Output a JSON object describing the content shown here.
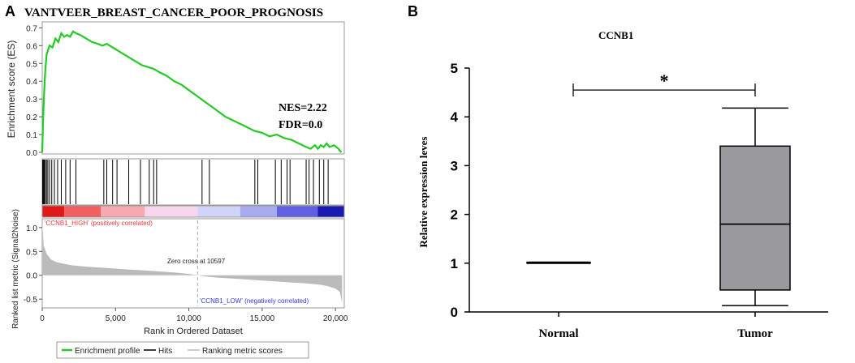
{
  "chart_data": [
    {
      "panel_letter": "A",
      "type": "line",
      "title": "VANTVEER_BREAST_CANCER_POOR_PROGNOSIS",
      "enrichment": {
        "ylabel": "Enrichment score (ES)",
        "ylim": [
          0,
          0.72
        ],
        "yticks": [
          "0.0",
          "0.1",
          "0.2",
          "0.3",
          "0.4",
          "0.5",
          "0.6",
          "0.7"
        ],
        "ytick_values": [
          0,
          0.1,
          0.2,
          0.3,
          0.4,
          0.5,
          0.6,
          0.7
        ],
        "xlim": [
          0,
          20600
        ],
        "series": [
          {
            "name": "Enrichment profile",
            "color": "#22cc22",
            "x": [
              0,
              60,
              120,
              200,
              300,
              500,
              700,
              900,
              1100,
              1300,
              1500,
              1700,
              1900,
              2100,
              2300,
              2600,
              3000,
              3400,
              3800,
              4100,
              4400,
              4600,
              4800,
              5200,
              5600,
              6000,
              6400,
              6800,
              7200,
              7600,
              8000,
              8500,
              9000,
              9500,
              10000,
              10500,
              11000,
              11500,
              12000,
              12500,
              13000,
              13500,
              14000,
              14500,
              15000,
              15500,
              16000,
              16500,
              17000,
              17500,
              18000,
              18300,
              18600,
              18800,
              19000,
              19200,
              19400,
              19600,
              19900,
              20200,
              20400
            ],
            "values": [
              0.0,
              0.18,
              0.32,
              0.45,
              0.55,
              0.6,
              0.59,
              0.64,
              0.62,
              0.67,
              0.65,
              0.66,
              0.65,
              0.68,
              0.67,
              0.66,
              0.64,
              0.62,
              0.61,
              0.6,
              0.61,
              0.6,
              0.59,
              0.57,
              0.55,
              0.53,
              0.51,
              0.49,
              0.48,
              0.47,
              0.45,
              0.43,
              0.4,
              0.38,
              0.35,
              0.32,
              0.29,
              0.26,
              0.23,
              0.2,
              0.18,
              0.16,
              0.14,
              0.12,
              0.11,
              0.09,
              0.1,
              0.08,
              0.07,
              0.05,
              0.03,
              0.02,
              0.04,
              0.02,
              0.04,
              0.03,
              0.05,
              0.03,
              0.04,
              0.02,
              0.0
            ]
          }
        ],
        "annotations": [
          "NES=2.22",
          "FDR=0.0"
        ]
      },
      "hits": {
        "series_name": "Hits",
        "color": "#000000",
        "positions": [
          30,
          80,
          140,
          210,
          290,
          380,
          500,
          650,
          830,
          1050,
          1300,
          1600,
          1900,
          2300,
          4200,
          4400,
          4800,
          5100,
          5900,
          6700,
          7300,
          7600,
          7800,
          10900,
          11400,
          14500,
          14700,
          15900,
          16300,
          16700,
          16900,
          18000,
          18200,
          18500,
          18900,
          19200,
          19500
        ]
      },
      "ranked_metric": {
        "ylabel": "Ranked list metric (Signal2Noise)",
        "xlabel": "Rank in Ordered Dataset",
        "ylim": [
          -0.65,
          1.15
        ],
        "yticks": [
          "1.0",
          "0.5",
          "0.0",
          "-0.5"
        ],
        "ytick_values": [
          1.0,
          0.5,
          0.0,
          -0.5
        ],
        "xlim": [
          0,
          20600
        ],
        "xticks": [
          "0",
          "5,000",
          "10,000",
          "15,000",
          "20,000"
        ],
        "xtick_values": [
          0,
          5000,
          10000,
          15000,
          20000
        ],
        "series": [
          {
            "name": "Ranking metric scores",
            "color": "#bbbbbb",
            "x": [
              0,
              100,
              300,
              600,
              1000,
              1500,
              2000,
              3000,
              4000,
              5000,
              6000,
              7000,
              8000,
              9000,
              10000,
              10597,
              11000,
              12000,
              13000,
              14000,
              15000,
              16000,
              17000,
              18000,
              19000,
              19500,
              20000,
              20300,
              20450
            ],
            "values": [
              1.1,
              0.62,
              0.45,
              0.33,
              0.27,
              0.24,
              0.21,
              0.18,
              0.16,
              0.14,
              0.12,
              0.1,
              0.08,
              0.06,
              0.03,
              0.0,
              -0.02,
              -0.05,
              -0.07,
              -0.09,
              -0.11,
              -0.13,
              -0.15,
              -0.17,
              -0.2,
              -0.23,
              -0.28,
              -0.35,
              -0.58
            ]
          }
        ],
        "zero_cross_label": "Zero cross at 10597",
        "zero_cross_value": 10597,
        "high_label": "'CCNB1_HIGH' (positively correlated)",
        "low_label": "'CCNB1_LOW' (negatively correlated)",
        "high_color": "#e8383a",
        "low_color": "#3838d8"
      },
      "heat_bar": {
        "segments": [
          {
            "end": 1500,
            "color": "#e01818"
          },
          {
            "end": 4000,
            "color": "#f06060"
          },
          {
            "end": 7000,
            "color": "#f8a8b0"
          },
          {
            "end": 10600,
            "color": "#f8d6ee"
          },
          {
            "end": 13500,
            "color": "#d0d4f8"
          },
          {
            "end": 16000,
            "color": "#a8aaf0"
          },
          {
            "end": 18800,
            "color": "#6060e0"
          },
          {
            "end": 20600,
            "color": "#1a1ab0"
          }
        ]
      },
      "legend": {
        "items": [
          {
            "label": "Enrichment profile",
            "color": "#22cc22"
          },
          {
            "label": "Hits",
            "color": "#000000"
          },
          {
            "label": "Ranking metric scores",
            "color": "#bbbbbb"
          }
        ]
      }
    },
    {
      "panel_letter": "B",
      "type": "box",
      "title": "CCNB1",
      "xlabel": "",
      "ylabel": "Relative expression leves",
      "ylim": [
        0,
        5
      ],
      "yticks": [
        "0",
        "1",
        "2",
        "3",
        "4",
        "5"
      ],
      "ytick_values": [
        0,
        1,
        2,
        3,
        4,
        5
      ],
      "categories": [
        "Normal",
        "Tumor"
      ],
      "boxes": [
        {
          "min": 1.0,
          "q1": 1.0,
          "median": 1.0,
          "q3": 1.02,
          "max": 1.02,
          "fill": "#ffffff"
        },
        {
          "min": 0.13,
          "q1": 0.45,
          "median": 1.8,
          "q3": 3.4,
          "max": 4.18,
          "fill": "#9a9a9e"
        }
      ],
      "significance": {
        "label": "*",
        "y": 4.55
      }
    }
  ]
}
